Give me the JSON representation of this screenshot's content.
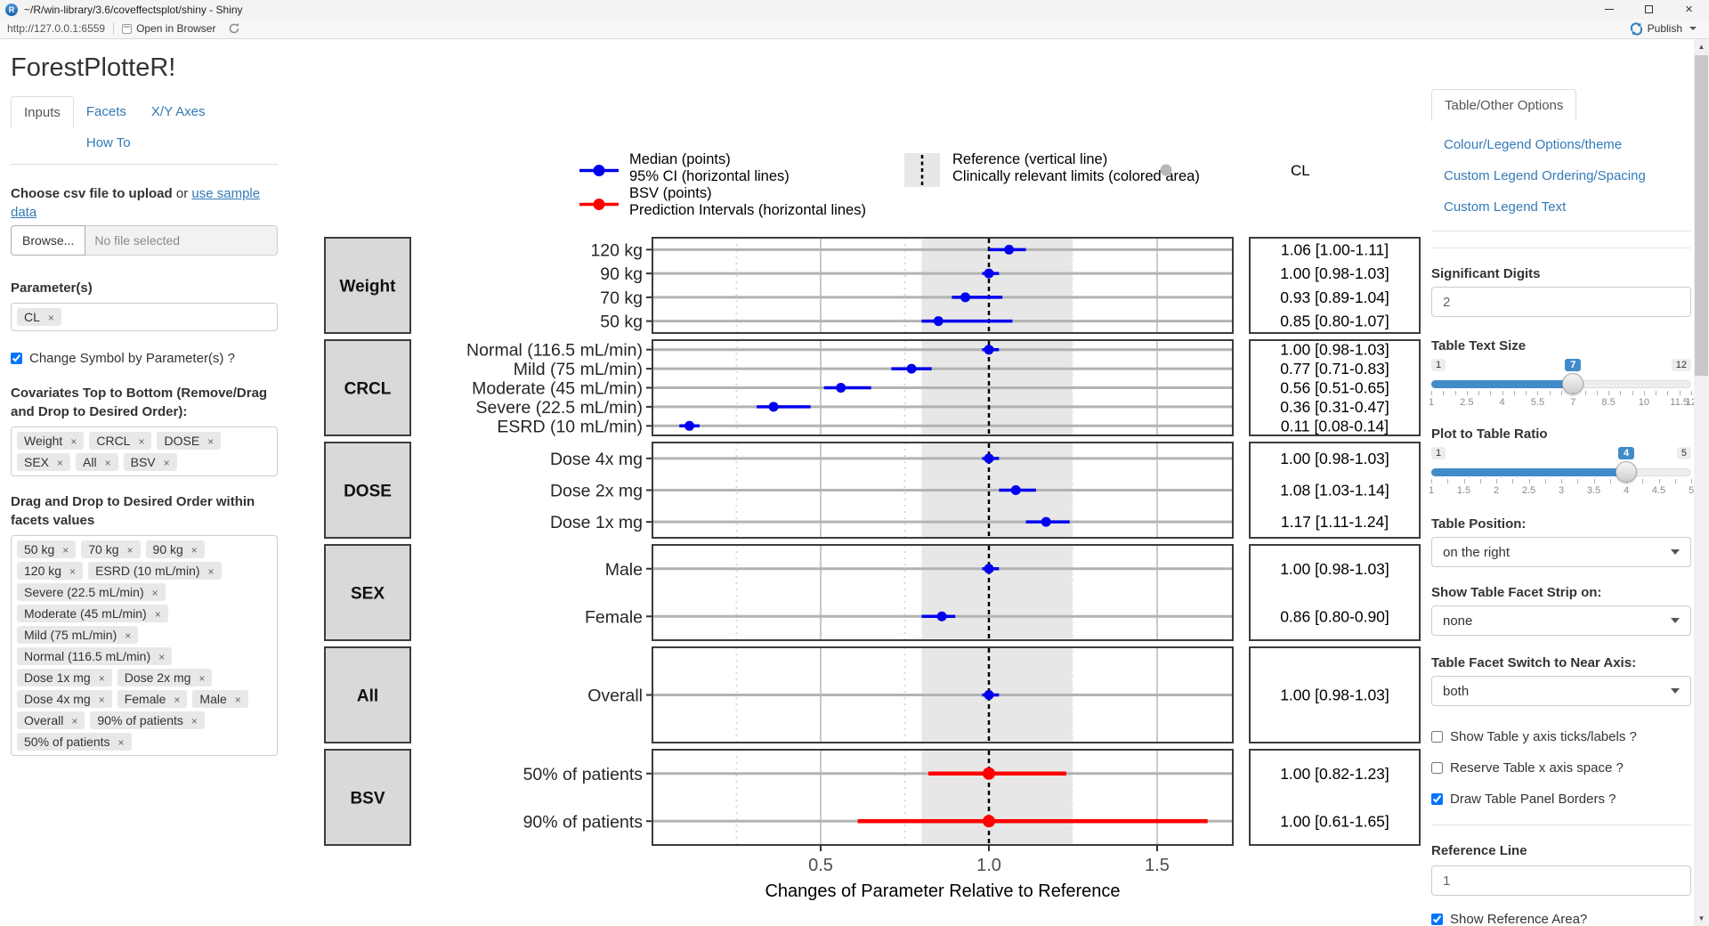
{
  "window": {
    "title": "~/R/win-library/3.6/coveffectsplot/shiny - Shiny"
  },
  "toolbar": {
    "url": "http://127.0.0.1:6559",
    "open_in_browser": "Open in Browser",
    "publish_label": "Publish"
  },
  "sidebar": {
    "app_title": "ForestPlotteR!",
    "tabs": [
      "Inputs",
      "Facets",
      "X/Y Axes",
      "How To"
    ],
    "active_tab": "Inputs",
    "upload": {
      "label_bold": "Choose csv file to upload",
      "label_or": " or ",
      "label_link": "use sample data",
      "browse_label": "Browse...",
      "file_placeholder": "No file selected"
    },
    "parameters": {
      "label": "Parameter(s)",
      "tags": [
        "CL"
      ]
    },
    "change_symbol": {
      "label": "Change Symbol by Parameter(s) ?",
      "checked": true
    },
    "covariates": {
      "label": "Covariates Top to Bottom (Remove/Drag and Drop to Desired Order):",
      "tags": [
        "Weight",
        "CRCL",
        "DOSE",
        "SEX",
        "All",
        "BSV"
      ]
    },
    "facet_values": {
      "label": "Drag and Drop to Desired Order within facets values",
      "tags": [
        "50 kg",
        "70 kg",
        "90 kg",
        "120 kg",
        "ESRD (10 mL/min)",
        "Severe (22.5 mL/min)",
        "Moderate (45 mL/min)",
        "Mild (75 mL/min)",
        "Normal (116.5 mL/min)",
        "Dose 1x mg",
        "Dose 2x mg",
        "Dose 4x mg",
        "Female",
        "Male",
        "Overall",
        "90% of patients",
        "50% of patients"
      ]
    }
  },
  "options_panel": {
    "tab_label": "Table/Other Options",
    "links": [
      "Colour/Legend Options/theme",
      "Custom Legend Ordering/Spacing",
      "Custom Legend Text"
    ],
    "significant_digits": {
      "label": "Significant Digits",
      "value": "2"
    },
    "table_text_size": {
      "label": "Table Text Size",
      "min": 1,
      "max": 12,
      "value": 7,
      "minor_step": 0.5,
      "ticks": [
        "1",
        "2.5",
        "4",
        "5.5",
        "7",
        "8.5",
        "10",
        "11.5",
        "12"
      ]
    },
    "plot_table_ratio": {
      "label": "Plot to Table Ratio",
      "min": 1,
      "max": 5,
      "value": 4,
      "minor_step": 0.25,
      "ticks": [
        "1",
        "1.5",
        "2",
        "2.5",
        "3",
        "3.5",
        "4",
        "4.5",
        "5"
      ]
    },
    "table_position": {
      "label": "Table Position:",
      "value": "on the right"
    },
    "facet_strip_on": {
      "label": "Show Table Facet Strip on:",
      "value": "none"
    },
    "facet_switch": {
      "label": "Table Facet Switch to Near Axis:",
      "value": "both"
    },
    "checkboxes": [
      {
        "label": "Show Table y axis ticks/labels ?",
        "checked": false
      },
      {
        "label": "Reserve Table x axis space ?",
        "checked": false
      },
      {
        "label": "Draw Table Panel Borders ?",
        "checked": true
      }
    ],
    "reference_line": {
      "label": "Reference Line",
      "value": "1"
    },
    "show_reference_area": {
      "label": "Show Reference Area?",
      "checked": true
    }
  },
  "chart_data": {
    "type": "forest",
    "xlabel": "Changes of Parameter Relative to Reference",
    "x_ticks": [
      {
        "v": 0.5,
        "label": "0.5"
      },
      {
        "v": 1.0,
        "label": "1.0"
      },
      {
        "v": 1.5,
        "label": "1.5"
      }
    ],
    "x_minor_ticks": [
      0.25,
      0.75,
      1.25
    ],
    "x_range": [
      0.0,
      1.725
    ],
    "reference_line": 1.0,
    "shaded_area": [
      0.8,
      1.25
    ],
    "colors": {
      "ci": "#0000EE",
      "bsv": "#FF0000",
      "area": "#E7E7E7",
      "gray_point": "#B8B8B8"
    },
    "legend": {
      "entries": [
        {
          "swatch": "point-line",
          "series": "ci",
          "lines": [
            "Median (points)",
            "95% CI (horizontal lines)"
          ]
        },
        {
          "swatch": "point-line",
          "series": "bsv",
          "lines": [
            "BSV (points)",
            "Prediction Intervals (horizontal lines)"
          ]
        },
        {
          "swatch": "ref-area",
          "lines": [
            "Reference (vertical line)",
            "Clinically relevant limits (colored area)"
          ]
        },
        {
          "swatch": "gray-point",
          "lines": [
            "CL"
          ]
        }
      ]
    },
    "panels": [
      {
        "facet": "Weight",
        "rows": [
          {
            "label": "120 kg",
            "mid": 1.06,
            "lo": 1.0,
            "hi": 1.11,
            "series": "ci",
            "table": "1.06 [1.00-1.11]"
          },
          {
            "label": "90 kg",
            "mid": 1.0,
            "lo": 0.98,
            "hi": 1.03,
            "series": "ci",
            "table": "1.00 [0.98-1.03]"
          },
          {
            "label": "70 kg",
            "mid": 0.93,
            "lo": 0.89,
            "hi": 1.04,
            "series": "ci",
            "table": "0.93 [0.89-1.04]"
          },
          {
            "label": "50 kg",
            "mid": 0.85,
            "lo": 0.8,
            "hi": 1.07,
            "series": "ci",
            "table": "0.85 [0.80-1.07]"
          }
        ]
      },
      {
        "facet": "CRCL",
        "rows": [
          {
            "label": "Normal (116.5 mL/min)",
            "mid": 1.0,
            "lo": 0.98,
            "hi": 1.03,
            "series": "ci",
            "table": "1.00 [0.98-1.03]"
          },
          {
            "label": "Mild (75 mL/min)",
            "mid": 0.77,
            "lo": 0.71,
            "hi": 0.83,
            "series": "ci",
            "table": "0.77 [0.71-0.83]"
          },
          {
            "label": "Moderate (45 mL/min)",
            "mid": 0.56,
            "lo": 0.51,
            "hi": 0.65,
            "series": "ci",
            "table": "0.56 [0.51-0.65]"
          },
          {
            "label": "Severe (22.5 mL/min)",
            "mid": 0.36,
            "lo": 0.31,
            "hi": 0.47,
            "series": "ci",
            "table": "0.36 [0.31-0.47]"
          },
          {
            "label": "ESRD (10 mL/min)",
            "mid": 0.11,
            "lo": 0.08,
            "hi": 0.14,
            "series": "ci",
            "table": "0.11 [0.08-0.14]"
          }
        ]
      },
      {
        "facet": "DOSE",
        "rows": [
          {
            "label": "Dose 4x mg",
            "mid": 1.0,
            "lo": 0.98,
            "hi": 1.03,
            "series": "ci",
            "table": "1.00 [0.98-1.03]"
          },
          {
            "label": "Dose 2x mg",
            "mid": 1.08,
            "lo": 1.03,
            "hi": 1.14,
            "series": "ci",
            "table": "1.08 [1.03-1.14]"
          },
          {
            "label": "Dose 1x mg",
            "mid": 1.17,
            "lo": 1.11,
            "hi": 1.24,
            "series": "ci",
            "table": "1.17 [1.11-1.24]"
          }
        ]
      },
      {
        "facet": "SEX",
        "rows": [
          {
            "label": "Male",
            "mid": 1.0,
            "lo": 0.98,
            "hi": 1.03,
            "series": "ci",
            "table": "1.00 [0.98-1.03]"
          },
          {
            "label": "Female",
            "mid": 0.86,
            "lo": 0.8,
            "hi": 0.9,
            "series": "ci",
            "table": "0.86 [0.80-0.90]"
          }
        ]
      },
      {
        "facet": "All",
        "rows": [
          {
            "label": "Overall",
            "mid": 1.0,
            "lo": 0.98,
            "hi": 1.03,
            "series": "ci",
            "table": "1.00 [0.98-1.03]"
          }
        ]
      },
      {
        "facet": "BSV",
        "rows": [
          {
            "label": "50% of patients",
            "mid": 1.0,
            "lo": 0.82,
            "hi": 1.23,
            "series": "bsv",
            "table": "1.00 [0.82-1.23]"
          },
          {
            "label": "90% of patients",
            "mid": 1.0,
            "lo": 0.61,
            "hi": 1.65,
            "series": "bsv",
            "table": "1.00 [0.61-1.65]"
          }
        ]
      }
    ]
  }
}
